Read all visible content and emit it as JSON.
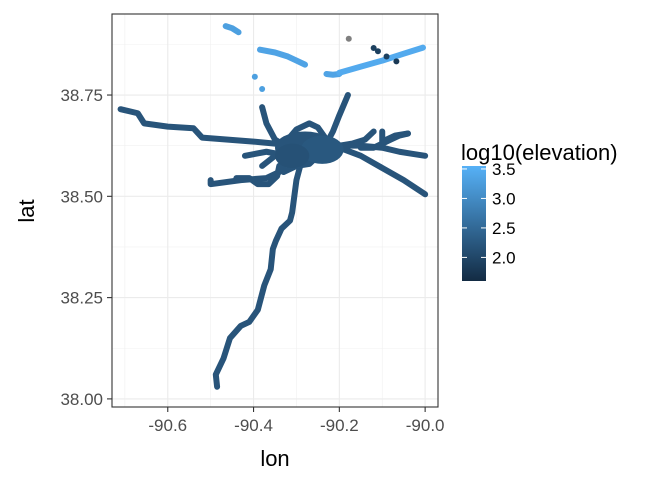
{
  "chart_data": {
    "type": "scatter",
    "title": "",
    "xlabel": "lon",
    "ylabel": "lat",
    "xlim": [
      -90.73,
      -89.97
    ],
    "ylim": [
      37.98,
      38.95
    ],
    "x_ticks": [
      -90.6,
      -90.4,
      -90.2,
      -90.0
    ],
    "x_tick_labels": [
      "-90.6",
      "-90.4",
      "-90.2",
      "-90.0"
    ],
    "y_ticks": [
      38.0,
      38.25,
      38.5,
      38.75
    ],
    "y_tick_labels": [
      "38.00",
      "38.25",
      "38.50",
      "38.75"
    ],
    "grid": true,
    "color_scale": {
      "title": "log10(elevation)",
      "range": [
        1.6,
        3.55
      ],
      "low_color": "#132B43",
      "high_color": "#56B1F7",
      "na_color": "#7f7f7f",
      "breaks": [
        2.0,
        2.5,
        3.0,
        3.5
      ],
      "break_labels": [
        "2.0",
        "2.5",
        "3.0",
        "3.5"
      ],
      "legend_position": "right"
    },
    "tracks": [
      {
        "elev": 2.2,
        "points": [
          [
            -90.71,
            38.715
          ],
          [
            -90.67,
            38.705
          ],
          [
            -90.655,
            38.68
          ],
          [
            -90.6,
            38.672
          ],
          [
            -90.54,
            38.668
          ],
          [
            -90.52,
            38.645
          ],
          [
            -90.46,
            38.64
          ],
          [
            -90.4,
            38.635
          ],
          [
            -90.35,
            38.63
          ],
          [
            -90.3,
            38.625
          ]
        ]
      },
      {
        "elev": 2.2,
        "points": [
          [
            -90.5,
            38.54
          ],
          [
            -90.5,
            38.53
          ],
          [
            -90.43,
            38.54
          ],
          [
            -90.37,
            38.545
          ],
          [
            -90.34,
            38.56
          ],
          [
            -90.31,
            38.6
          ]
        ]
      },
      {
        "elev": 2.2,
        "points": [
          [
            -90.44,
            38.545
          ],
          [
            -90.41,
            38.545
          ],
          [
            -90.39,
            38.53
          ],
          [
            -90.365,
            38.53
          ],
          [
            -90.345,
            38.55
          ],
          [
            -90.34,
            38.575
          ]
        ]
      },
      {
        "elev": 2.2,
        "points": [
          [
            -90.485,
            38.03
          ],
          [
            -90.488,
            38.06
          ],
          [
            -90.47,
            38.1
          ],
          [
            -90.455,
            38.15
          ],
          [
            -90.43,
            38.18
          ],
          [
            -90.41,
            38.19
          ],
          [
            -90.39,
            38.22
          ],
          [
            -90.375,
            38.28
          ],
          [
            -90.36,
            38.32
          ],
          [
            -90.355,
            38.37
          ],
          [
            -90.348,
            38.39
          ],
          [
            -90.335,
            38.42
          ],
          [
            -90.315,
            38.44
          ],
          [
            -90.31,
            38.46
          ],
          [
            -90.305,
            38.5
          ],
          [
            -90.3,
            38.54
          ],
          [
            -90.29,
            38.58
          ]
        ]
      },
      {
        "elev": 2.2,
        "points": [
          [
            -90.0,
            38.505
          ],
          [
            -90.05,
            38.54
          ],
          [
            -90.1,
            38.57
          ],
          [
            -90.15,
            38.6
          ],
          [
            -90.2,
            38.62
          ]
        ]
      },
      {
        "elev": 2.2,
        "points": [
          [
            -90.0,
            38.6
          ],
          [
            -90.03,
            38.605
          ],
          [
            -90.06,
            38.61
          ],
          [
            -90.1,
            38.62
          ],
          [
            -90.15,
            38.625
          ],
          [
            -90.2,
            38.625
          ]
        ]
      },
      {
        "elev": 2.2,
        "points": [
          [
            -90.04,
            38.655
          ],
          [
            -90.06,
            38.65
          ],
          [
            -90.08,
            38.64
          ],
          [
            -90.1,
            38.63
          ],
          [
            -90.12,
            38.62
          ],
          [
            -90.15,
            38.62
          ]
        ]
      },
      {
        "elev": 2.2,
        "points": [
          [
            -90.1,
            38.66
          ],
          [
            -90.1,
            38.635
          ],
          [
            -90.07,
            38.65
          ],
          [
            -90.04,
            38.655
          ]
        ]
      },
      {
        "elev": 2.2,
        "points": [
          [
            -90.18,
            38.75
          ],
          [
            -90.2,
            38.7
          ],
          [
            -90.215,
            38.66
          ],
          [
            -90.23,
            38.63
          ],
          [
            -90.24,
            38.62
          ]
        ]
      },
      {
        "elev": 2.2,
        "points": [
          [
            -90.38,
            38.72
          ],
          [
            -90.37,
            38.68
          ],
          [
            -90.35,
            38.64
          ],
          [
            -90.32,
            38.62
          ]
        ]
      },
      {
        "elev": 2.2,
        "points": [
          [
            -90.32,
            38.64
          ],
          [
            -90.3,
            38.665
          ],
          [
            -90.27,
            38.68
          ],
          [
            -90.25,
            38.67
          ],
          [
            -90.23,
            38.64
          ]
        ]
      },
      {
        "elev": 2.2,
        "points": [
          [
            -90.42,
            38.6
          ],
          [
            -90.37,
            38.61
          ],
          [
            -90.32,
            38.6
          ],
          [
            -90.28,
            38.59
          ]
        ]
      },
      {
        "elev": 2.2,
        "points": [
          [
            -90.38,
            38.575
          ],
          [
            -90.35,
            38.6
          ],
          [
            -90.33,
            38.62
          ]
        ]
      },
      {
        "elev": 2.2,
        "points": [
          [
            -90.33,
            38.56
          ],
          [
            -90.3,
            38.575
          ],
          [
            -90.27,
            38.58
          ],
          [
            -90.25,
            38.6
          ]
        ]
      },
      {
        "elev": 2.2,
        "points": [
          [
            -90.3,
            38.61
          ],
          [
            -90.26,
            38.6
          ],
          [
            -90.2,
            38.61
          ]
        ]
      },
      {
        "elev": 2.2,
        "points": [
          [
            -90.2,
            38.625
          ],
          [
            -90.17,
            38.63
          ],
          [
            -90.14,
            38.64
          ],
          [
            -90.12,
            38.66
          ]
        ]
      }
    ],
    "clusters": [
      {
        "elev": 2.2,
        "cx": -90.28,
        "cy": 38.62,
        "rx": 0.07,
        "ry": 0.04
      },
      {
        "elev": 2.25,
        "cx": -90.24,
        "cy": 38.615,
        "rx": 0.05,
        "ry": 0.035
      },
      {
        "elev": 2.15,
        "cx": -90.31,
        "cy": 38.6,
        "rx": 0.04,
        "ry": 0.03
      }
    ],
    "high_tracks": [
      {
        "elev": 3.3,
        "points": [
          [
            -90.465,
            38.92
          ],
          [
            -90.45,
            38.915
          ],
          [
            -90.435,
            38.905
          ]
        ]
      },
      {
        "elev": 3.35,
        "points": [
          [
            -90.385,
            38.862
          ],
          [
            -90.35,
            38.855
          ],
          [
            -90.32,
            38.845
          ],
          [
            -90.3,
            38.835
          ],
          [
            -90.28,
            38.825
          ]
        ]
      },
      {
        "elev": 3.35,
        "points": [
          [
            -90.23,
            38.802
          ],
          [
            -90.215,
            38.8
          ],
          [
            -90.2,
            38.802
          ]
        ]
      },
      {
        "elev": 3.45,
        "points": [
          [
            -90.2,
            38.805
          ],
          [
            -90.15,
            38.82
          ],
          [
            -90.1,
            38.835
          ],
          [
            -90.05,
            38.852
          ],
          [
            -90.005,
            38.867
          ]
        ]
      }
    ],
    "points": [
      {
        "x": -90.397,
        "y": 38.795,
        "elev": 3.3
      },
      {
        "x": -90.38,
        "y": 38.765,
        "elev": 3.3
      },
      {
        "x": -90.178,
        "y": 38.889,
        "elev": null
      },
      {
        "x": -90.12,
        "y": 38.866,
        "elev": 1.9
      },
      {
        "x": -90.09,
        "y": 38.845,
        "elev": 1.9
      },
      {
        "x": -90.067,
        "y": 38.833,
        "elev": 1.8
      },
      {
        "x": -90.11,
        "y": 38.858,
        "elev": 1.9
      }
    ]
  }
}
